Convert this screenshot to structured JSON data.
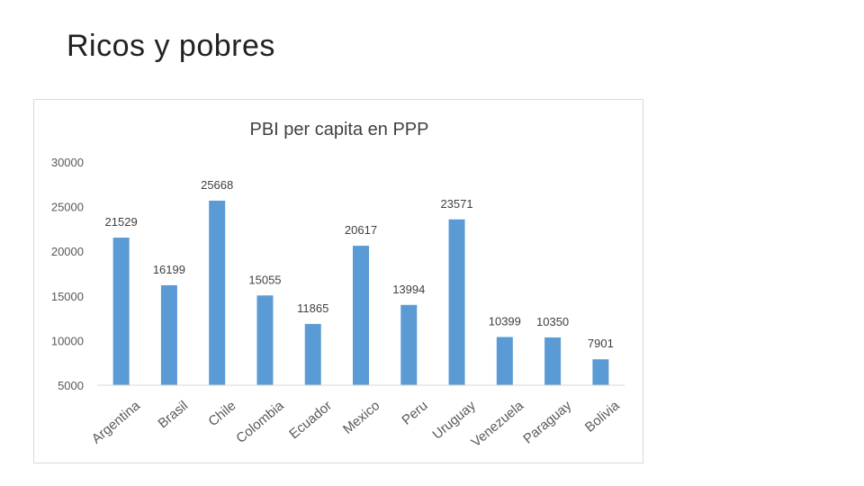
{
  "slide": {
    "title": "Ricos y pobres"
  },
  "chart_data": {
    "type": "bar",
    "title": "PBI per capita en PPP",
    "xlabel": "",
    "ylabel": "",
    "ylim": [
      5000,
      30000
    ],
    "yticks": [
      5000,
      10000,
      15000,
      20000,
      25000,
      30000
    ],
    "grid": false,
    "legend": "none",
    "bar_color": "#5b9bd5",
    "categories": [
      "Argentina",
      "Brasil",
      "Chile",
      "Colombia",
      "Ecuador",
      "Mexico",
      "Peru",
      "Uruguay",
      "Venezuela",
      "Paraguay",
      "Bolivia"
    ],
    "values": [
      21529,
      16199,
      25668,
      15055,
      11865,
      20617,
      13994,
      23571,
      10399,
      10350,
      7901
    ]
  }
}
